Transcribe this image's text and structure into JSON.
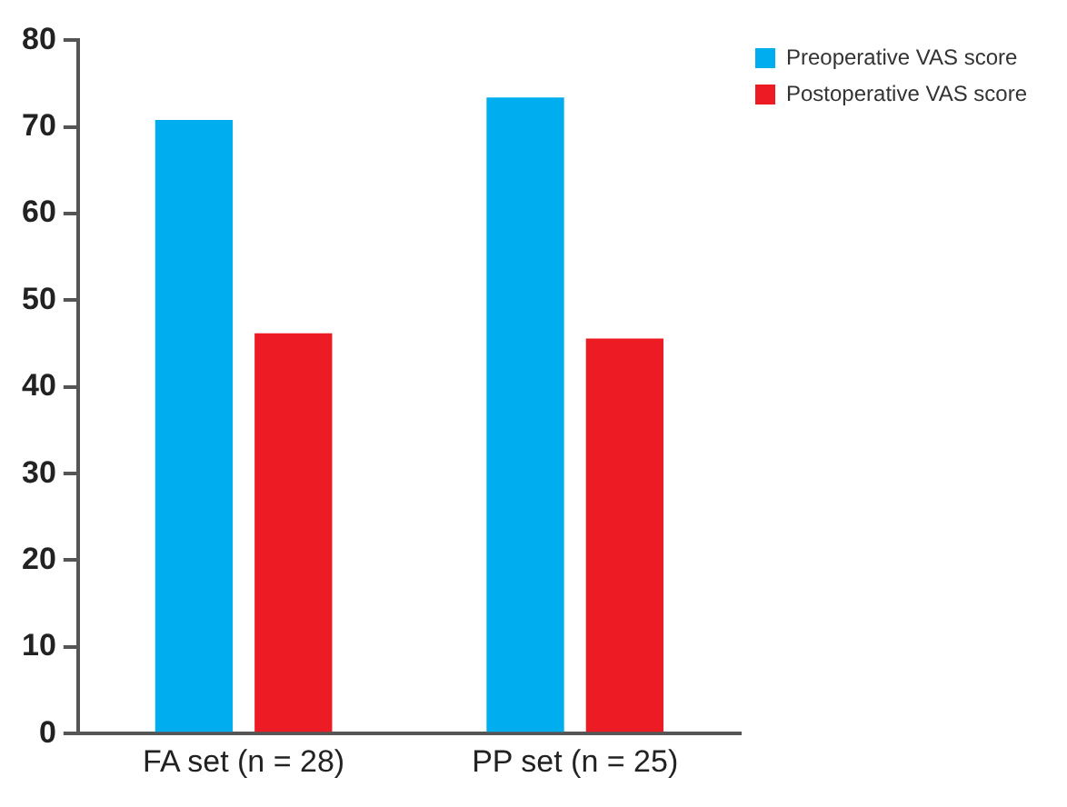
{
  "chart_data": {
    "type": "bar",
    "categories": [
      "FA set (n = 28)",
      "PP set (n = 25)"
    ],
    "series": [
      {
        "name": "Preoperative VAS score",
        "color": "#00aeef",
        "values": [
          70.8,
          73.4
        ]
      },
      {
        "name": "Postoperative VAS score",
        "color": "#ed1c24",
        "values": [
          46.2,
          45.6
        ]
      }
    ],
    "ylim": [
      0,
      80
    ],
    "yticks": [
      0,
      10,
      20,
      30,
      40,
      50,
      60,
      70,
      80
    ],
    "grid": false,
    "legend": "top right"
  }
}
